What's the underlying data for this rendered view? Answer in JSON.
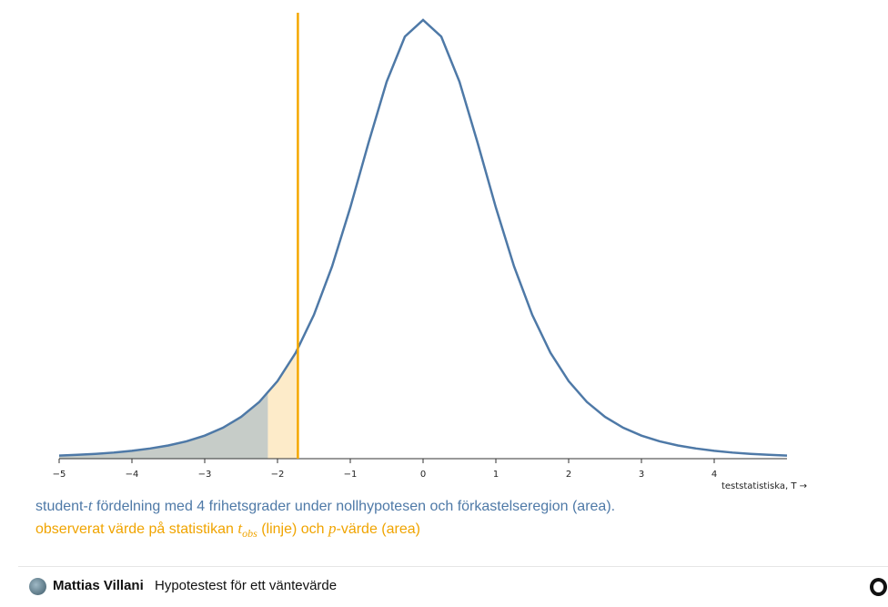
{
  "chart_data": {
    "type": "line",
    "x": [
      -5,
      -4.75,
      -4.5,
      -4.25,
      -4,
      -3.75,
      -3.5,
      -3.25,
      -3,
      -2.75,
      -2.5,
      -2.25,
      -2,
      -1.75,
      -1.5,
      -1.25,
      -1,
      -0.75,
      -0.5,
      -0.25,
      0,
      0.25,
      0.5,
      0.75,
      1,
      1.25,
      1.5,
      1.75,
      2,
      2.25,
      2.5,
      2.75,
      3,
      3.25,
      3.5,
      3.75,
      4,
      4.25,
      4.5,
      4.75,
      5
    ],
    "values": [
      0.0026,
      0.0033,
      0.0041,
      0.0052,
      0.0067,
      0.0087,
      0.0113,
      0.0148,
      0.0197,
      0.0264,
      0.0357,
      0.0485,
      0.0663,
      0.0905,
      0.1229,
      0.1644,
      0.2147,
      0.2699,
      0.3223,
      0.3608,
      0.375,
      0.3608,
      0.3223,
      0.2699,
      0.2147,
      0.1644,
      0.1229,
      0.0905,
      0.0663,
      0.0485,
      0.0357,
      0.0264,
      0.0197,
      0.0148,
      0.0113,
      0.0087,
      0.0067,
      0.0052,
      0.0041,
      0.0033,
      0.0026
    ],
    "color": "#4e79a7",
    "xlim": [
      -5,
      5
    ],
    "ylim": [
      0,
      0.375
    ],
    "xticks": [
      {
        "value": -5,
        "label": "−5"
      },
      {
        "value": -4,
        "label": "−4"
      },
      {
        "value": -3,
        "label": "−3"
      },
      {
        "value": -2,
        "label": "−2"
      },
      {
        "value": -1,
        "label": "−1"
      },
      0,
      1,
      2,
      3,
      4
    ],
    "x_label": "teststatistiska, T →",
    "regions": [
      {
        "from": -5,
        "to": -2.132,
        "color": "#c6ccc8"
      },
      {
        "from": -2.132,
        "to": -1.72,
        "color": "#fdebc9"
      }
    ],
    "t_obs": -1.72,
    "t_obs_color": "#f4a700",
    "caption_1": [
      "student-",
      "t",
      " fördelning med 4 frihetsgrader under nollhypotesen och förkastelseregion (area)."
    ],
    "caption_2": [
      "observerat värde på statistikan ",
      "t",
      "obs",
      " (linje) och ",
      "p",
      "-värde (area)"
    ]
  },
  "footer": {
    "author": "Mattias Villani",
    "notebook": "Hypotestest för ett väntevärde"
  }
}
